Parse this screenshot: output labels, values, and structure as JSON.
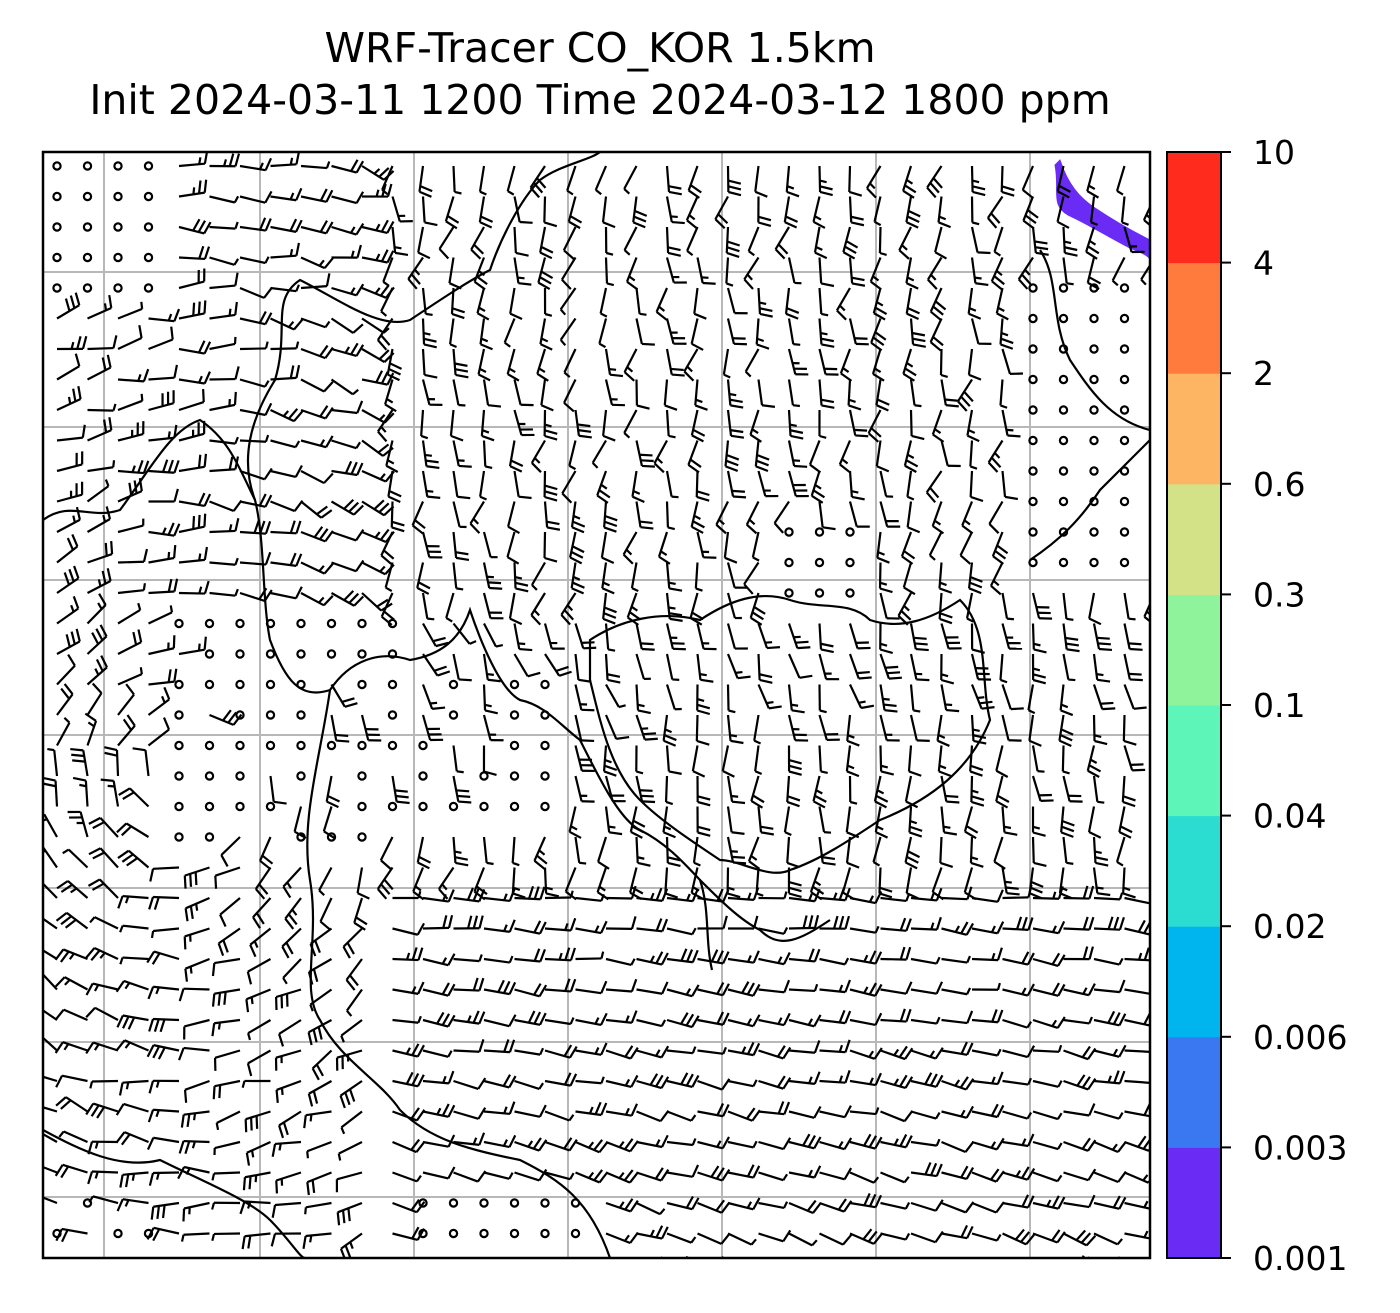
{
  "title": {
    "line1": "WRF-Tracer CO_KOR 1.5km",
    "line2": "Init 2024-03-11 1200 Time 2024-03-12 1800 ppm"
  },
  "map": {
    "background": "#ffffff",
    "gridline_color": "#b8b8b8",
    "barb_color": "#000000",
    "coastline_color": "#000000",
    "wind_barbs_shown": true,
    "calm_markers": "circles"
  },
  "colorbar": {
    "tick_labels": [
      "0.001",
      "0.003",
      "0.006",
      "0.02",
      "0.04",
      "0.1",
      "0.3",
      "0.6",
      "2",
      "4",
      "10"
    ],
    "colors": [
      "#6a2cf5",
      "#3a78f2",
      "#00b4ee",
      "#2bdcd0",
      "#5ef6b8",
      "#8ef39a",
      "#d4e287",
      "#fdb463",
      "#ff7a3d",
      "#ff2b1c"
    ]
  },
  "plume": {
    "level_index": 0,
    "description_color": "#6a2cf5"
  }
}
